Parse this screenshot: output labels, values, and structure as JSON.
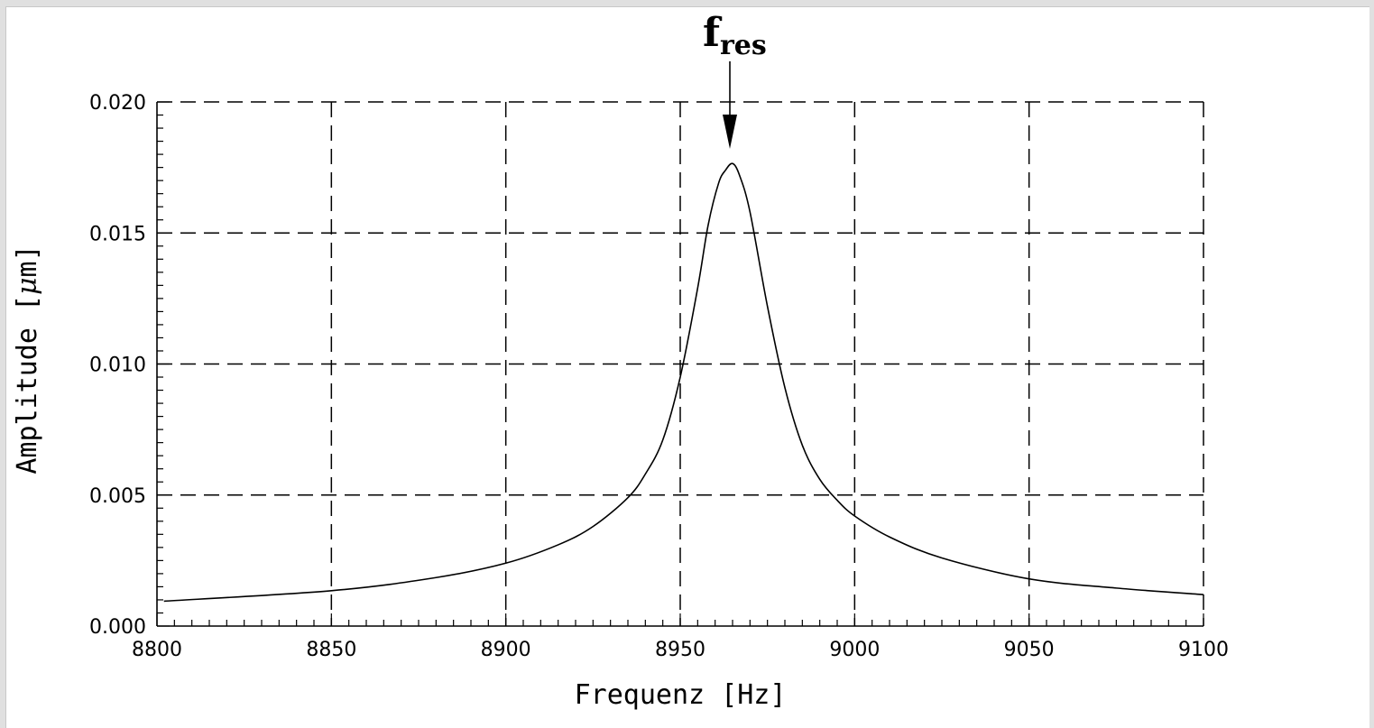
{
  "chart_data": {
    "type": "line",
    "title": "",
    "xlabel": "Frequenz [Hz]",
    "ylabel_main": "Amplitude [",
    "ylabel_unit_greek": "μ",
    "ylabel_tail": "m]",
    "xlim": [
      8800,
      9100
    ],
    "ylim": [
      0.0,
      0.02
    ],
    "x_ticks": [
      8800,
      8850,
      8900,
      8950,
      9000,
      9050,
      9100
    ],
    "x_tick_labels": [
      "8800",
      "8850",
      "8900",
      "8950",
      "9000",
      "9050",
      "9100"
    ],
    "y_ticks": [
      0.0,
      0.005,
      0.01,
      0.015,
      0.02
    ],
    "y_tick_labels": [
      "0.000",
      "0.005",
      "0.010",
      "0.015",
      "0.020"
    ],
    "grid": true,
    "grid_style": "dashed",
    "line_color": "#000000",
    "annotation": {
      "text_main": "f",
      "text_sub": "res",
      "x": 8965,
      "arrow": true
    },
    "series": [
      {
        "x": [
          8802,
          8850,
          8880,
          8900,
          8915,
          8925,
          8935,
          8940,
          8945,
          8950,
          8955,
          8958,
          8961,
          8963,
          8965,
          8967,
          8970,
          8975,
          8980,
          8985,
          8990,
          8995,
          9000,
          9010,
          9025,
          9050,
          9075,
          9100
        ],
        "y": [
          0.00095,
          0.00135,
          0.00185,
          0.0024,
          0.0031,
          0.0038,
          0.0049,
          0.0058,
          0.0071,
          0.0095,
          0.0129,
          0.0153,
          0.0169,
          0.0174,
          0.01765,
          0.0172,
          0.0158,
          0.0122,
          0.0091,
          0.0069,
          0.0056,
          0.0048,
          0.0042,
          0.0034,
          0.0026,
          0.0018,
          0.00145,
          0.0012
        ]
      }
    ]
  }
}
